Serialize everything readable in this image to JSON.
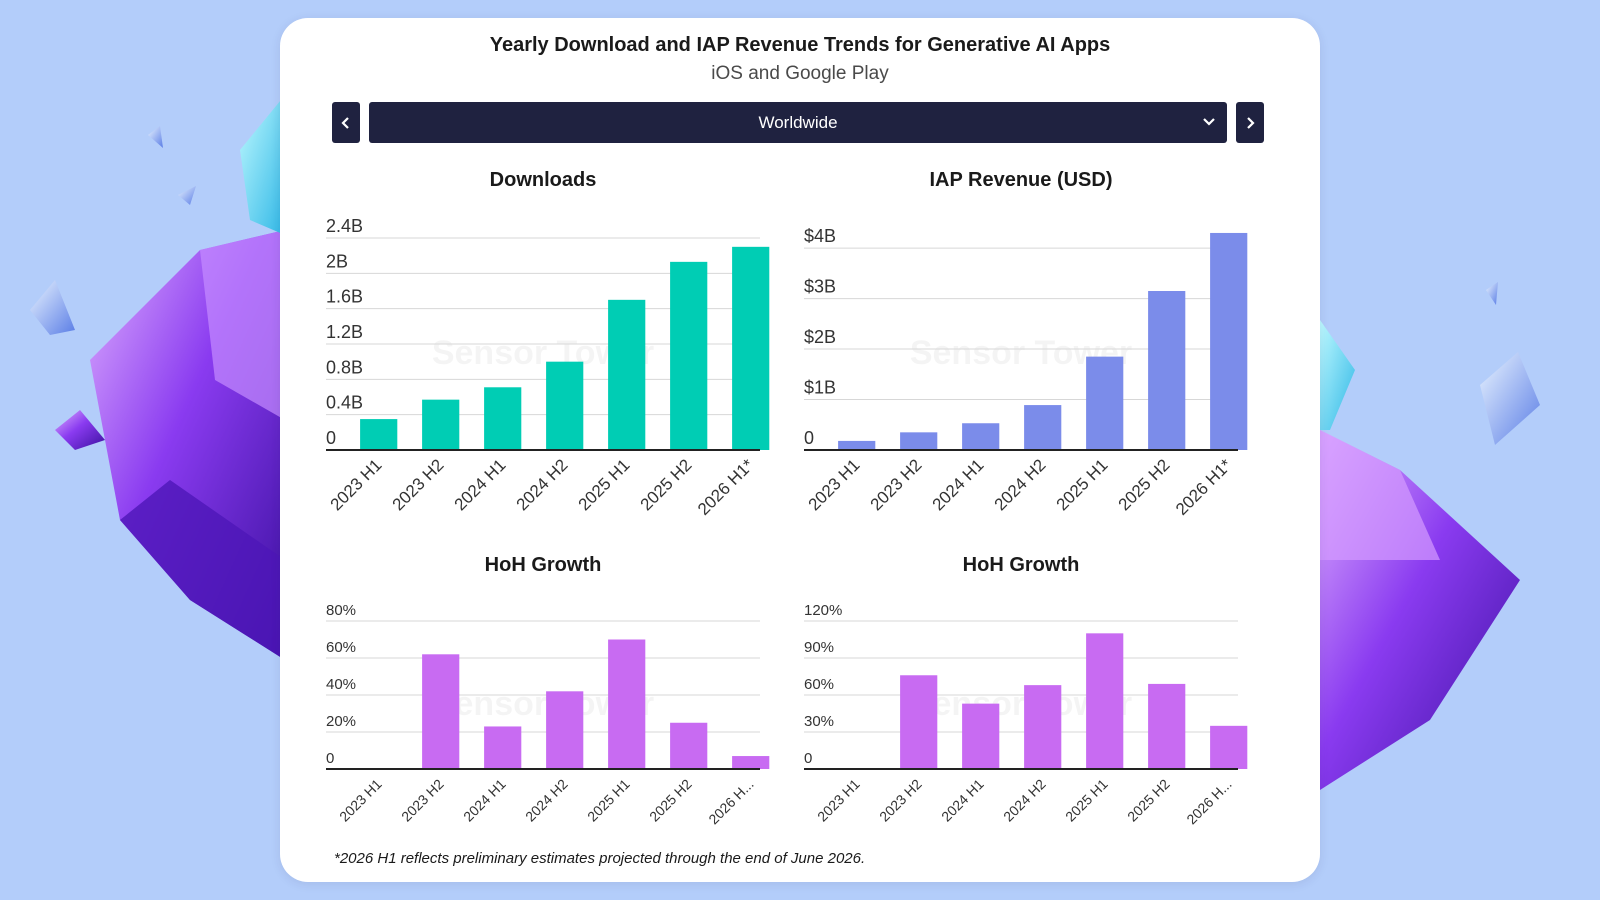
{
  "header": {
    "title": "Yearly Download and IAP Revenue Trends for Generative AI Apps",
    "subtitle": "iOS and Google Play"
  },
  "region_selector": {
    "value": "Worldwide"
  },
  "icons": {
    "prev": "chevron-left-icon",
    "next": "chevron-right-icon",
    "dropdown": "chevron-down-icon"
  },
  "colors": {
    "downloads": "#00cdb4",
    "revenue": "#7b8cea",
    "growth": "#c86bf2",
    "selector_bg": "#1f2240"
  },
  "watermark": "Sensor Tower",
  "footnote": "*2026 H1 reflects preliminary estimates projected through the end of June 2026.",
  "chart_data": [
    {
      "id": "downloads",
      "type": "bar",
      "title": "Downloads",
      "categories": [
        "2023 H1",
        "2023 H2",
        "2024 H1",
        "2024 H2",
        "2025 H1",
        "2025 H2",
        "2026 H1*"
      ],
      "values": [
        0.35,
        0.57,
        0.71,
        1.0,
        1.7,
        2.13,
        2.3
      ],
      "yticks": [
        0,
        0.4,
        0.8,
        1.2,
        1.6,
        2,
        2.4
      ],
      "ytick_labels": [
        "0",
        "0.4B",
        "0.8B",
        "1.2B",
        "1.6B",
        "2B",
        "2.4B"
      ],
      "ylim": [
        0,
        2.4
      ],
      "color": "#00cdb4",
      "grid": true
    },
    {
      "id": "revenue",
      "type": "bar",
      "title": "IAP Revenue (USD)",
      "categories": [
        "2023 H1",
        "2023 H2",
        "2024 H1",
        "2024 H2",
        "2025 H1",
        "2025 H2",
        "2026 H1*"
      ],
      "values": [
        0.18,
        0.35,
        0.53,
        0.89,
        1.85,
        3.15,
        4.3
      ],
      "yticks": [
        0,
        1,
        2,
        3,
        4
      ],
      "ytick_labels": [
        "0",
        "$1B",
        "$2B",
        "$3B",
        "$4B"
      ],
      "ylim": [
        0,
        4.2
      ],
      "color": "#7b8cea",
      "grid": true
    },
    {
      "id": "downloads-growth",
      "type": "bar",
      "title": "HoH Growth",
      "categories": [
        "2023 H1",
        "2023 H2",
        "2024 H1",
        "2024 H2",
        "2025 H1",
        "2025 H2",
        "2026 H..."
      ],
      "values": [
        0,
        62,
        23,
        42,
        70,
        25,
        7
      ],
      "yticks": [
        0,
        20,
        40,
        60,
        80
      ],
      "ytick_labels": [
        "0",
        "20%",
        "40%",
        "60%",
        "80%"
      ],
      "ylim": [
        0,
        80
      ],
      "color": "#c86bf2",
      "grid": true
    },
    {
      "id": "revenue-growth",
      "type": "bar",
      "title": "HoH Growth",
      "categories": [
        "2023 H1",
        "2023 H2",
        "2024 H1",
        "2024 H2",
        "2025 H1",
        "2025 H2",
        "2026 H..."
      ],
      "values": [
        0,
        76,
        53,
        68,
        110,
        69,
        35
      ],
      "yticks": [
        0,
        30,
        60,
        90,
        120
      ],
      "ytick_labels": [
        "0",
        "30%",
        "60%",
        "90%",
        "120%"
      ],
      "ylim": [
        0,
        120
      ],
      "color": "#c86bf2",
      "grid": true
    }
  ]
}
